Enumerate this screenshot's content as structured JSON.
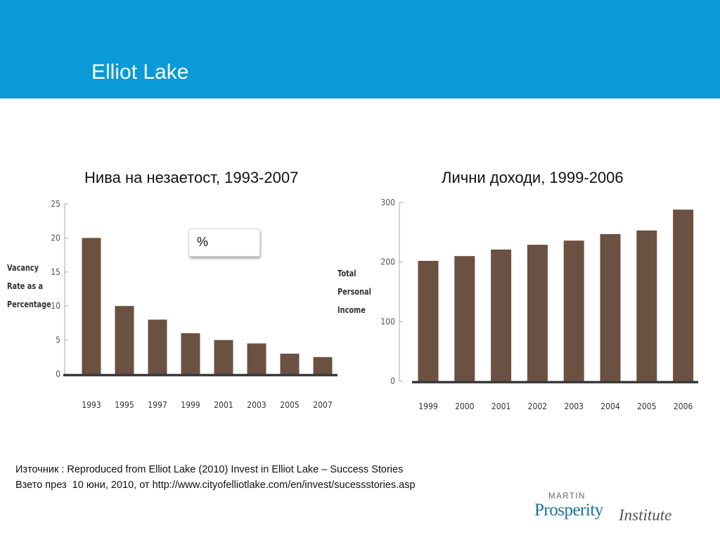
{
  "header": {
    "title": "Elliot Lake"
  },
  "chart_data": [
    {
      "type": "bar",
      "heading": "Нива на незаетост, 1993-2007",
      "categories": [
        "1993",
        "1995",
        "1997",
        "1999",
        "2001",
        "2003",
        "2005",
        "2007"
      ],
      "values": [
        20,
        10,
        8,
        6,
        5,
        4.5,
        3,
        2.5
      ],
      "ylabel_lines": [
        "Vacancy",
        "Rate as a",
        "Percentage"
      ],
      "ylim": [
        0,
        25
      ],
      "yticks": [
        0,
        5,
        10,
        15,
        20,
        25
      ],
      "unit_badge": "%",
      "bar_color": "#6b5142",
      "grid": false
    },
    {
      "type": "bar",
      "heading": "Лични доходи, 1999-2006",
      "categories": [
        "1999",
        "2000",
        "2001",
        "2002",
        "2003",
        "2004",
        "2005",
        "2006"
      ],
      "values": [
        202,
        210,
        221,
        229,
        236,
        247,
        253,
        288
      ],
      "ylabel_lines": [
        "Total",
        "Personal",
        "Income"
      ],
      "ylim": [
        0,
        300
      ],
      "yticks": [
        0,
        100,
        200,
        300
      ],
      "bar_color": "#6b5142",
      "grid": false
    }
  ],
  "source": {
    "line1": "Източник : Reproduced from Elliot Lake (2010) Invest in Elliot Lake – Success Stories",
    "line2": "Взето през  10 юни, 2010, от http://www.cityofelliotlake.com/en/invest/sucessstories.asp"
  },
  "logo": {
    "top": "MARTIN",
    "main": "Prosperity",
    "suffix": "Institute"
  }
}
